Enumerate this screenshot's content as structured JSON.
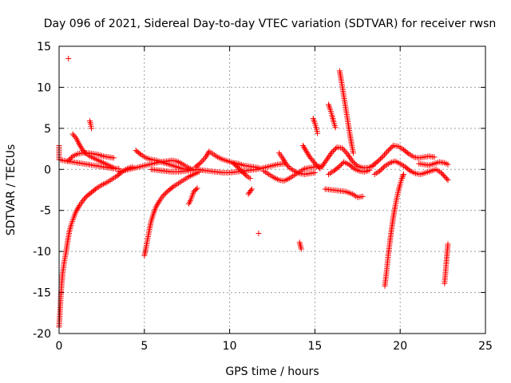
{
  "chart_data": {
    "type": "scatter",
    "title": "Day 096 of 2021, Sidereal Day-to-day VTEC variation (SDTVAR) for receiver rwsn",
    "xlabel": "GPS time / hours",
    "ylabel": "SDTVAR / TECUs",
    "xlim": [
      0,
      25
    ],
    "ylim": [
      -20,
      15
    ],
    "xticks": [
      0,
      5,
      10,
      15,
      20,
      25
    ],
    "yticks": [
      -20,
      -15,
      -10,
      -5,
      0,
      5,
      10,
      15
    ],
    "grid": true,
    "marker": "+",
    "color": "#ff0000",
    "series": [
      {
        "name": "s1",
        "points": [
          [
            0.0,
            -19.2
          ],
          [
            0.05,
            -17.5
          ],
          [
            0.1,
            -15.5
          ],
          [
            0.15,
            -14.0
          ],
          [
            0.2,
            -12.8
          ],
          [
            0.3,
            -11.3
          ],
          [
            0.4,
            -10.2
          ],
          [
            0.5,
            -8.8
          ],
          [
            0.6,
            -7.6
          ],
          [
            0.7,
            -6.8
          ],
          [
            0.85,
            -5.9
          ],
          [
            1.0,
            -5.1
          ],
          [
            1.2,
            -4.4
          ],
          [
            1.4,
            -3.8
          ],
          [
            1.6,
            -3.3
          ],
          [
            1.9,
            -2.8
          ],
          [
            2.2,
            -2.3
          ],
          [
            2.5,
            -1.9
          ],
          [
            2.8,
            -1.6
          ],
          [
            3.1,
            -1.2
          ],
          [
            3.4,
            -0.8
          ],
          [
            3.7,
            -0.3
          ],
          [
            4.0,
            0.1
          ],
          [
            4.3,
            0.3
          ]
        ]
      },
      {
        "name": "s2",
        "points": [
          [
            0.0,
            2.9
          ],
          [
            0.0,
            1.2
          ],
          [
            0.2,
            1.1
          ],
          [
            0.5,
            1.0
          ],
          [
            0.8,
            0.9
          ],
          [
            1.1,
            0.8
          ],
          [
            1.4,
            0.7
          ],
          [
            1.7,
            0.6
          ],
          [
            2.0,
            0.5
          ],
          [
            2.3,
            0.4
          ],
          [
            2.6,
            0.3
          ],
          [
            2.9,
            0.2
          ],
          [
            3.2,
            0.1
          ],
          [
            3.5,
            0.1
          ]
        ]
      },
      {
        "name": "s3",
        "points": [
          [
            0.8,
            4.3
          ],
          [
            1.0,
            3.8
          ],
          [
            1.2,
            3.0
          ],
          [
            1.4,
            2.3
          ],
          [
            1.6,
            1.9
          ],
          [
            1.8,
            1.6
          ],
          [
            2.0,
            1.4
          ],
          [
            2.2,
            1.2
          ],
          [
            2.4,
            1.0
          ],
          [
            2.6,
            0.8
          ],
          [
            2.8,
            0.6
          ],
          [
            3.0,
            0.4
          ],
          [
            3.2,
            0.2
          ]
        ]
      },
      {
        "name": "s4",
        "points": [
          [
            0.5,
            1.0
          ],
          [
            0.8,
            1.6
          ],
          [
            1.1,
            1.9
          ],
          [
            1.4,
            2.0
          ],
          [
            1.7,
            2.0
          ],
          [
            2.0,
            1.9
          ],
          [
            2.3,
            1.8
          ],
          [
            2.6,
            1.6
          ],
          [
            2.9,
            1.5
          ],
          [
            3.2,
            1.4
          ]
        ]
      },
      {
        "name": "s5",
        "points": [
          [
            1.8,
            5.9
          ],
          [
            1.85,
            5.5
          ],
          [
            1.9,
            5.0
          ]
        ]
      },
      {
        "name": "s6",
        "points": [
          [
            4.5,
            2.3
          ],
          [
            4.8,
            1.8
          ],
          [
            5.1,
            1.4
          ],
          [
            5.4,
            1.2
          ],
          [
            5.7,
            1.1
          ],
          [
            6.0,
            0.9
          ],
          [
            6.3,
            0.7
          ],
          [
            6.6,
            0.5
          ],
          [
            6.9,
            0.3
          ],
          [
            7.2,
            0.1
          ],
          [
            7.5,
            0.0
          ],
          [
            7.8,
            -0.1
          ]
        ]
      },
      {
        "name": "s7",
        "points": [
          [
            3.5,
            -0.3
          ],
          [
            3.9,
            -0.1
          ],
          [
            4.3,
            0.1
          ],
          [
            4.7,
            0.3
          ],
          [
            5.1,
            0.5
          ],
          [
            5.5,
            0.7
          ],
          [
            5.9,
            0.9
          ],
          [
            6.3,
            1.0
          ],
          [
            6.6,
            1.1
          ],
          [
            6.9,
            1.0
          ],
          [
            7.2,
            0.7
          ],
          [
            7.5,
            0.3
          ],
          [
            7.8,
            0.0
          ]
        ]
      },
      {
        "name": "s8",
        "points": [
          [
            5.0,
            -10.5
          ],
          [
            5.1,
            -9.5
          ],
          [
            5.2,
            -8.4
          ],
          [
            5.3,
            -7.3
          ],
          [
            5.4,
            -6.3
          ],
          [
            5.55,
            -5.3
          ],
          [
            5.7,
            -4.5
          ],
          [
            5.9,
            -3.8
          ],
          [
            6.1,
            -3.2
          ],
          [
            6.4,
            -2.6
          ],
          [
            6.7,
            -2.1
          ],
          [
            7.0,
            -1.7
          ],
          [
            7.3,
            -1.3
          ],
          [
            7.6,
            -0.9
          ],
          [
            7.9,
            -0.6
          ],
          [
            8.2,
            -0.3
          ]
        ]
      },
      {
        "name": "s9",
        "points": [
          [
            5.4,
            0.0
          ],
          [
            5.8,
            -0.1
          ],
          [
            6.2,
            -0.2
          ],
          [
            6.6,
            -0.3
          ],
          [
            7.0,
            -0.3
          ],
          [
            7.4,
            -0.2
          ],
          [
            7.8,
            -0.1
          ],
          [
            8.2,
            0.0
          ]
        ]
      },
      {
        "name": "s10",
        "points": [
          [
            7.6,
            -4.2
          ],
          [
            7.7,
            -3.8
          ],
          [
            7.9,
            -2.7
          ],
          [
            8.1,
            -2.3
          ]
        ]
      },
      {
        "name": "s11",
        "points": [
          [
            8.0,
            0.3
          ],
          [
            8.3,
            0.8
          ],
          [
            8.6,
            1.5
          ],
          [
            8.8,
            2.2
          ],
          [
            9.0,
            1.9
          ],
          [
            9.3,
            1.5
          ],
          [
            9.6,
            1.2
          ],
          [
            9.9,
            1.0
          ],
          [
            10.2,
            0.8
          ],
          [
            10.5,
            0.7
          ],
          [
            10.8,
            0.5
          ],
          [
            11.1,
            0.4
          ],
          [
            11.4,
            0.3
          ],
          [
            11.7,
            0.2
          ]
        ]
      },
      {
        "name": "s12",
        "points": [
          [
            8.0,
            0.0
          ],
          [
            8.4,
            -0.1
          ],
          [
            8.8,
            -0.2
          ],
          [
            9.2,
            -0.3
          ],
          [
            9.6,
            -0.4
          ],
          [
            10.0,
            -0.4
          ],
          [
            10.4,
            -0.3
          ],
          [
            10.8,
            -0.2
          ],
          [
            11.2,
            -0.1
          ],
          [
            11.6,
            0.0
          ],
          [
            12.0,
            0.2
          ],
          [
            12.4,
            0.4
          ],
          [
            12.8,
            0.6
          ],
          [
            13.2,
            0.7
          ]
        ]
      },
      {
        "name": "s13",
        "points": [
          [
            10.2,
            0.8
          ],
          [
            10.4,
            0.4
          ],
          [
            10.6,
            0.0
          ],
          [
            10.8,
            -0.4
          ],
          [
            11.0,
            -0.8
          ],
          [
            11.2,
            -1.1
          ]
        ]
      },
      {
        "name": "s14",
        "points": [
          [
            11.1,
            -3.0
          ],
          [
            11.2,
            -2.7
          ],
          [
            11.3,
            -2.4
          ]
        ]
      },
      {
        "name": "s15",
        "points": [
          [
            11.7,
            -7.8
          ]
        ]
      },
      {
        "name": "s16",
        "points": [
          [
            12.0,
            -0.2
          ],
          [
            12.3,
            -0.6
          ],
          [
            12.6,
            -1.0
          ],
          [
            12.9,
            -1.3
          ],
          [
            13.2,
            -1.4
          ],
          [
            13.5,
            -1.1
          ],
          [
            13.8,
            -0.7
          ],
          [
            14.1,
            -0.3
          ],
          [
            14.4,
            0.1
          ],
          [
            14.7,
            0.2
          ],
          [
            15.0,
            0.3
          ],
          [
            15.3,
            0.4
          ]
        ]
      },
      {
        "name": "s17",
        "points": [
          [
            12.9,
            2.0
          ],
          [
            13.1,
            1.4
          ],
          [
            13.3,
            0.7
          ],
          [
            13.5,
            0.2
          ],
          [
            13.8,
            -0.2
          ],
          [
            14.1,
            -0.5
          ],
          [
            14.4,
            -0.6
          ],
          [
            14.7,
            -0.5
          ],
          [
            15.0,
            -0.4
          ]
        ]
      },
      {
        "name": "s18",
        "points": [
          [
            14.1,
            -8.9
          ],
          [
            14.15,
            -9.3
          ],
          [
            14.2,
            -9.7
          ]
        ]
      },
      {
        "name": "s19",
        "points": [
          [
            14.3,
            2.9
          ],
          [
            14.5,
            2.2
          ],
          [
            14.7,
            1.5
          ],
          [
            14.9,
            1.0
          ],
          [
            15.1,
            0.5
          ],
          [
            15.3,
            0.1
          ]
        ]
      },
      {
        "name": "s20",
        "points": [
          [
            14.9,
            6.2
          ],
          [
            15.0,
            5.6
          ],
          [
            15.1,
            4.9
          ],
          [
            15.15,
            4.4
          ]
        ]
      },
      {
        "name": "s21",
        "points": [
          [
            15.8,
            7.9
          ],
          [
            15.9,
            7.3
          ],
          [
            16.0,
            6.6
          ],
          [
            16.1,
            5.8
          ],
          [
            16.2,
            5.1
          ]
        ]
      },
      {
        "name": "s22",
        "points": [
          [
            16.45,
            12.0
          ],
          [
            16.55,
            10.8
          ],
          [
            16.65,
            9.5
          ],
          [
            16.75,
            8.2
          ],
          [
            16.85,
            6.9
          ],
          [
            16.95,
            5.6
          ],
          [
            17.05,
            4.3
          ],
          [
            17.15,
            3.1
          ],
          [
            17.25,
            2.0
          ]
        ]
      },
      {
        "name": "s23",
        "points": [
          [
            15.4,
            0.3
          ],
          [
            15.7,
            1.2
          ],
          [
            16.0,
            2.1
          ],
          [
            16.3,
            2.7
          ],
          [
            16.6,
            2.6
          ],
          [
            16.9,
            1.9
          ],
          [
            17.2,
            1.0
          ],
          [
            17.5,
            0.4
          ],
          [
            17.8,
            0.2
          ],
          [
            18.1,
            0.2
          ],
          [
            18.4,
            0.4
          ]
        ]
      },
      {
        "name": "s24",
        "points": [
          [
            15.8,
            -0.6
          ],
          [
            16.1,
            -0.2
          ],
          [
            16.4,
            0.3
          ],
          [
            16.7,
            0.9
          ],
          [
            17.0,
            0.6
          ],
          [
            17.3,
            0.1
          ],
          [
            17.6,
            -0.2
          ],
          [
            17.9,
            -0.3
          ],
          [
            18.2,
            -0.1
          ]
        ]
      },
      {
        "name": "s25",
        "points": [
          [
            15.6,
            -2.4
          ],
          [
            16.0,
            -2.5
          ],
          [
            16.4,
            -2.6
          ],
          [
            16.8,
            -2.7
          ],
          [
            17.2,
            -3.0
          ],
          [
            17.5,
            -3.4
          ],
          [
            17.8,
            -3.3
          ]
        ]
      },
      {
        "name": "s26",
        "points": [
          [
            18.4,
            0.5
          ],
          [
            18.7,
            1.0
          ],
          [
            19.0,
            1.6
          ],
          [
            19.3,
            2.3
          ],
          [
            19.6,
            2.9
          ],
          [
            19.9,
            2.8
          ],
          [
            20.2,
            2.4
          ],
          [
            20.5,
            1.9
          ],
          [
            20.8,
            1.5
          ],
          [
            21.1,
            1.4
          ],
          [
            21.4,
            1.5
          ],
          [
            21.7,
            1.6
          ],
          [
            22.0,
            1.5
          ]
        ]
      },
      {
        "name": "s27",
        "points": [
          [
            18.5,
            -0.6
          ],
          [
            18.8,
            -0.2
          ],
          [
            19.1,
            0.4
          ],
          [
            19.4,
            0.8
          ],
          [
            19.7,
            1.0
          ],
          [
            20.0,
            0.7
          ],
          [
            20.3,
            0.3
          ],
          [
            20.6,
            -0.2
          ],
          [
            20.9,
            -0.5
          ],
          [
            21.2,
            -0.6
          ],
          [
            21.5,
            -0.4
          ],
          [
            21.8,
            -0.2
          ],
          [
            22.1,
            0.0
          ],
          [
            22.4,
            -0.4
          ],
          [
            22.8,
            -1.3
          ]
        ]
      },
      {
        "name": "s28",
        "points": [
          [
            19.1,
            -14.2
          ],
          [
            19.2,
            -12.5
          ],
          [
            19.3,
            -10.5
          ],
          [
            19.4,
            -8.8
          ],
          [
            19.5,
            -7.2
          ],
          [
            19.6,
            -5.8
          ],
          [
            19.7,
            -4.6
          ],
          [
            19.8,
            -3.5
          ],
          [
            19.9,
            -2.6
          ],
          [
            20.0,
            -1.8
          ],
          [
            20.1,
            -1.1
          ],
          [
            20.2,
            -0.6
          ]
        ]
      },
      {
        "name": "s29",
        "points": [
          [
            21.1,
            0.7
          ],
          [
            21.4,
            0.6
          ],
          [
            21.7,
            0.5
          ],
          [
            22.0,
            0.7
          ],
          [
            22.3,
            0.9
          ],
          [
            22.6,
            0.8
          ],
          [
            22.8,
            0.6
          ]
        ]
      },
      {
        "name": "s30",
        "points": [
          [
            22.6,
            -13.9
          ],
          [
            22.65,
            -12.8
          ],
          [
            22.7,
            -11.5
          ],
          [
            22.75,
            -10.3
          ],
          [
            22.8,
            -9.1
          ]
        ]
      },
      {
        "name": "s31",
        "points": [
          [
            0.55,
            13.5
          ]
        ]
      }
    ]
  }
}
